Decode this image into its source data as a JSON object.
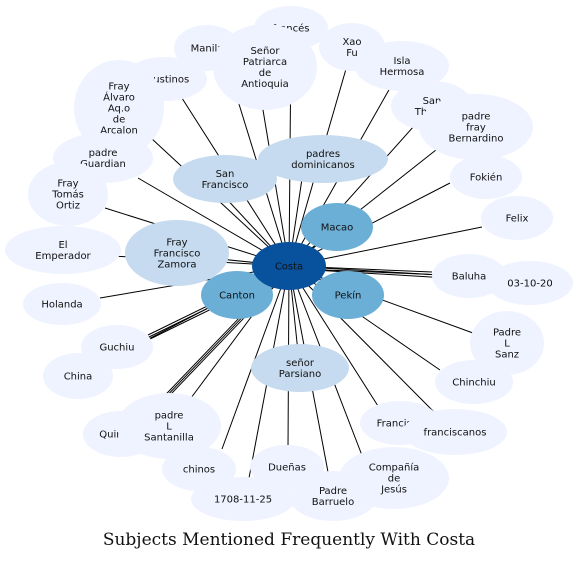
{
  "title": "Subjects Mentioned Frequently With Costa",
  "colors": {
    "edge": "#000000",
    "hub": "#08519c",
    "level_mid": "#6baed6",
    "level_light": "#c6dbef",
    "level_faint": "#eff3ff"
  },
  "hub": {
    "id": "costa",
    "lines": [
      "Costa"
    ]
  },
  "nodes": [
    {
      "id": "frances",
      "lines": [
        "francés"
      ],
      "level": "faint"
    },
    {
      "id": "manila",
      "lines": [
        "Manila"
      ],
      "level": "faint"
    },
    {
      "id": "agustinos",
      "lines": [
        "agustinos"
      ],
      "level": "faint"
    },
    {
      "id": "senor-patriarca",
      "lines": [
        "Señor",
        "Patriarca",
        "de",
        "Antioquia"
      ],
      "level": "faint"
    },
    {
      "id": "xao-fu",
      "lines": [
        "Xao",
        "Fu"
      ],
      "level": "faint"
    },
    {
      "id": "isla-hermosa",
      "lines": [
        "Isla",
        "Hermosa"
      ],
      "level": "faint"
    },
    {
      "id": "fray-alvaro",
      "lines": [
        "Fray",
        "Álvaro",
        "Aq.o",
        "de",
        "Arcalon"
      ],
      "level": "faint"
    },
    {
      "id": "san-thome",
      "lines": [
        "San",
        "Thome"
      ],
      "level": "faint"
    },
    {
      "id": "padre-fray-bernardino",
      "lines": [
        "padre",
        "fray",
        "Bernardino"
      ],
      "level": "faint"
    },
    {
      "id": "padres-dominicanos",
      "lines": [
        "padres",
        "dominicanos"
      ],
      "level": "light"
    },
    {
      "id": "padre-guardian",
      "lines": [
        "padre",
        "Guardian"
      ],
      "level": "faint"
    },
    {
      "id": "san-francisco",
      "lines": [
        "San",
        "Francisco"
      ],
      "level": "light"
    },
    {
      "id": "fokien",
      "lines": [
        "Fokién"
      ],
      "level": "faint"
    },
    {
      "id": "fray-tomas-ortiz",
      "lines": [
        "Fray",
        "Tomás",
        "Ortiz"
      ],
      "level": "faint"
    },
    {
      "id": "felix",
      "lines": [
        "Felix"
      ],
      "level": "faint"
    },
    {
      "id": "macao",
      "lines": [
        "Macao"
      ],
      "level": "mid"
    },
    {
      "id": "el-emperador",
      "lines": [
        "El",
        "Emperador"
      ],
      "level": "faint"
    },
    {
      "id": "fray-francisco-zamora",
      "lines": [
        "Fray",
        "Francisco",
        "Zamora"
      ],
      "level": "light"
    },
    {
      "id": "baluha",
      "lines": [
        "Baluha"
      ],
      "level": "faint"
    },
    {
      "id": "date-03-10-20",
      "lines": [
        "03-10-20"
      ],
      "level": "faint"
    },
    {
      "id": "canton",
      "lines": [
        "Canton"
      ],
      "level": "mid"
    },
    {
      "id": "pekin",
      "lines": [
        "Pekín"
      ],
      "level": "mid"
    },
    {
      "id": "holanda",
      "lines": [
        "Holanda"
      ],
      "level": "faint"
    },
    {
      "id": "padre-l-sanz",
      "lines": [
        "Padre",
        "L",
        "Sanz"
      ],
      "level": "faint"
    },
    {
      "id": "guchiu",
      "lines": [
        "Guchiu"
      ],
      "level": "faint"
    },
    {
      "id": "china",
      "lines": [
        "China"
      ],
      "level": "faint"
    },
    {
      "id": "senor-parsiano",
      "lines": [
        "señor",
        "Parsiano"
      ],
      "level": "light"
    },
    {
      "id": "chinchiu",
      "lines": [
        "Chinchiu"
      ],
      "level": "faint"
    },
    {
      "id": "quintero",
      "lines": [
        "Quintero"
      ],
      "level": "faint"
    },
    {
      "id": "padre-l-santanilla",
      "lines": [
        "padre",
        "L",
        "Santanilla"
      ],
      "level": "faint"
    },
    {
      "id": "francisco",
      "lines": [
        "Francisco"
      ],
      "level": "faint"
    },
    {
      "id": "franciscanos",
      "lines": [
        "franciscanos"
      ],
      "level": "faint"
    },
    {
      "id": "chinos",
      "lines": [
        "chinos"
      ],
      "level": "faint"
    },
    {
      "id": "duenas",
      "lines": [
        "Dueñas"
      ],
      "level": "faint"
    },
    {
      "id": "compania-de-jesus",
      "lines": [
        "Compañía",
        "de",
        "Jesús"
      ],
      "level": "faint"
    },
    {
      "id": "date-1708-11-25",
      "lines": [
        "1708-11-25"
      ],
      "level": "faint"
    },
    {
      "id": "padre-barruelo",
      "lines": [
        "Padre",
        "Barruelo"
      ],
      "level": "faint"
    }
  ]
}
